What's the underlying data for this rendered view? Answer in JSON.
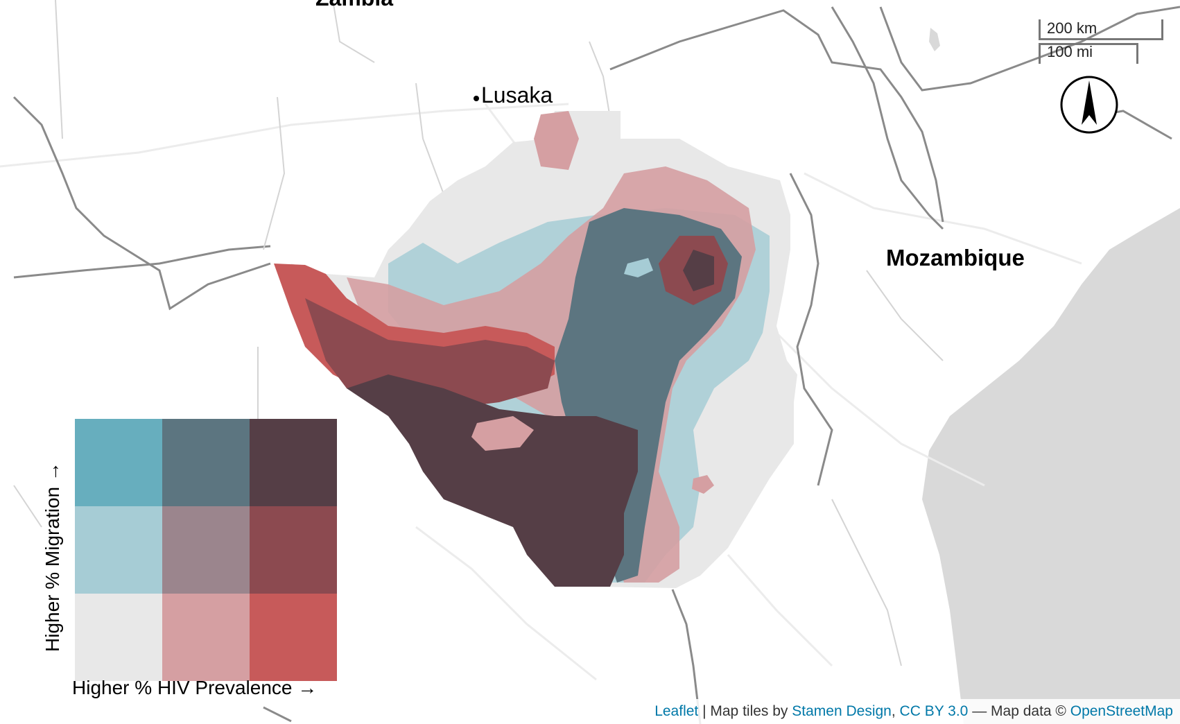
{
  "map": {
    "places": {
      "zambia": "Zambia",
      "lusaka": "Lusaka",
      "mozambique": "Mozambique"
    },
    "colors": {
      "land": "#ffffff",
      "ocean": "#d9d9d9",
      "border": "#8a8a8a",
      "road": "#ececec"
    }
  },
  "scale_bar": {
    "metric": "200 km",
    "imperial": "100 mi"
  },
  "north_arrow": {
    "icon": "north-arrow-icon"
  },
  "legend": {
    "x_label": "Higher % HIV Prevalence →",
    "y_label": "Higher % Migration →",
    "grid_colors": [
      [
        "#67aebe",
        "#5c7580",
        "#553e46"
      ],
      [
        "#a6ccd5",
        "#9b858d",
        "#8c4a50"
      ],
      [
        "#e8e8e8",
        "#d59fa2",
        "#c75a5a"
      ]
    ]
  },
  "attribution": {
    "leaflet": "Leaflet",
    "sep1": " | Map tiles by ",
    "stamen": "Stamen Design",
    "comma": ", ",
    "license": "CC BY 3.0",
    "sep2": " — Map data © ",
    "osm": "OpenStreetMap"
  }
}
